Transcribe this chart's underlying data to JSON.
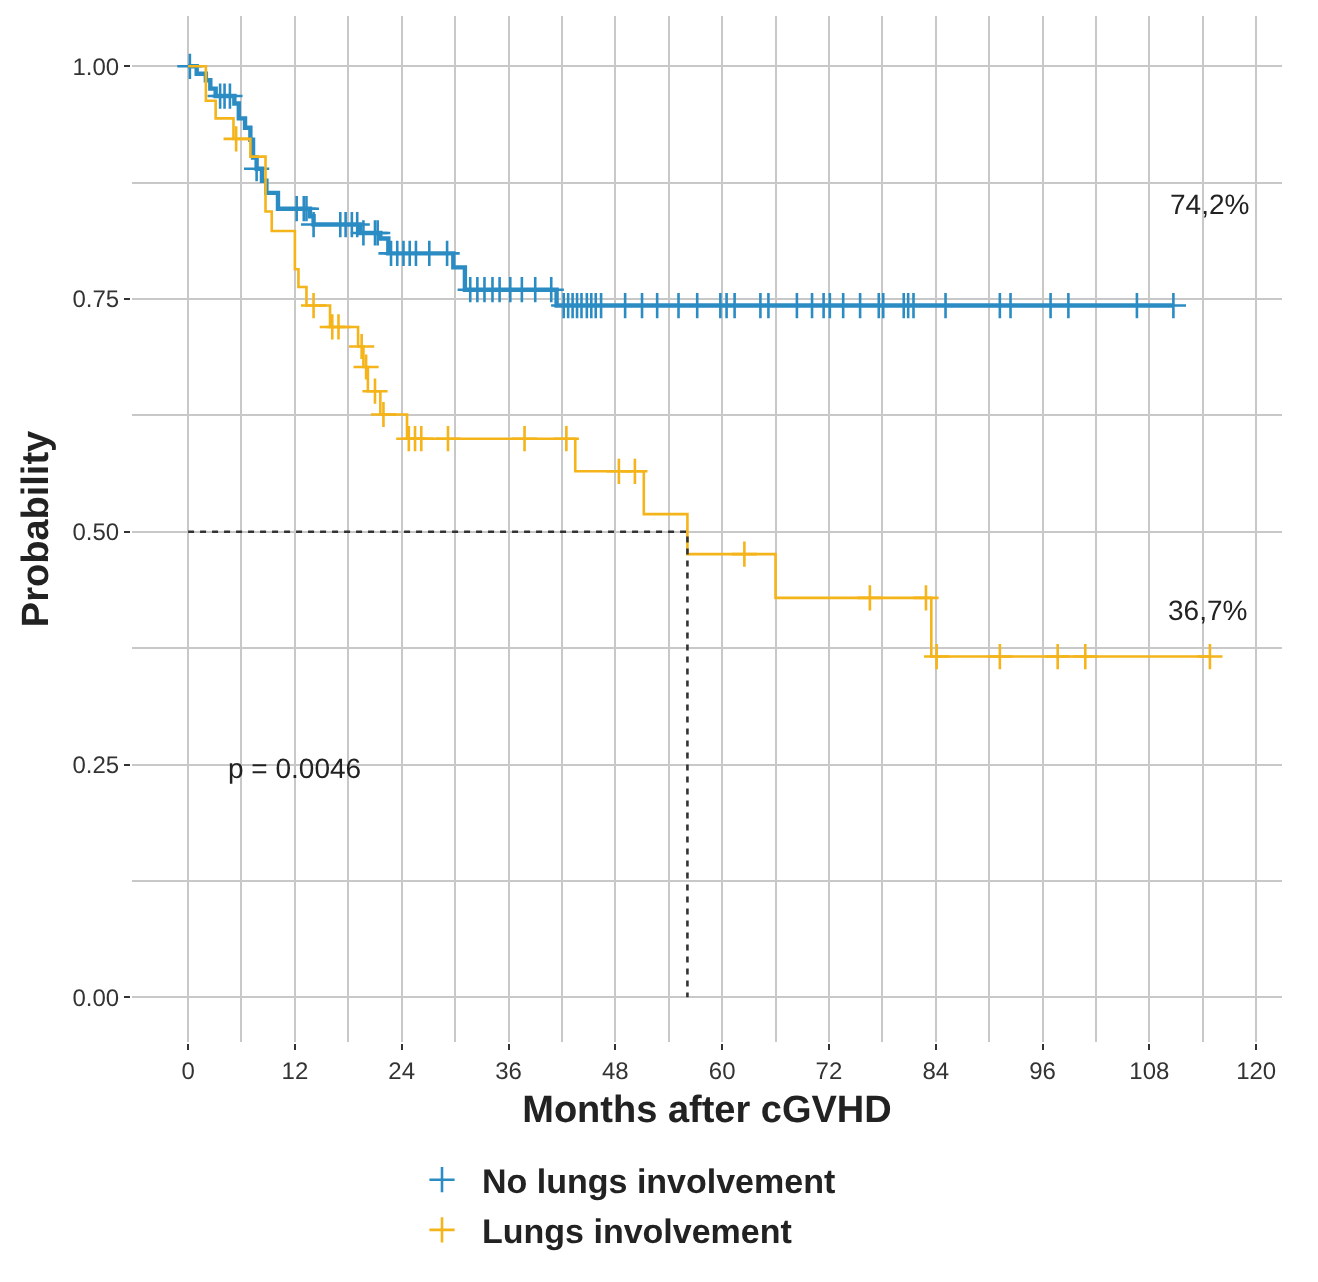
{
  "chart_data": {
    "type": "step",
    "xlabel": "Months after cGVHD",
    "ylabel": "Probability",
    "xlim": [
      -6.3,
      122.9
    ],
    "ylim": [
      -0.048,
      1.054
    ],
    "xticks": [
      0,
      12,
      24,
      36,
      48,
      60,
      72,
      84,
      96,
      108,
      120
    ],
    "yticks": [
      {
        "value": 0,
        "label": "0.00"
      },
      {
        "value": 0.25,
        "label": "0.25"
      },
      {
        "value": 0.5,
        "label": "0.50"
      },
      {
        "value": 0.75,
        "label": "0.75"
      },
      {
        "value": 1,
        "label": "1.00"
      }
    ],
    "grid": true,
    "legend": "bottom",
    "series": [
      {
        "color": "#2b8cc4",
        "x": [
          0,
          0.97,
          2.0,
          2.5,
          3.1,
          5.2,
          5.7,
          6.4,
          7.0,
          7.3,
          7.7,
          8.3,
          8.8,
          10.1,
          13.7,
          14.1,
          19.3,
          21.6,
          22.5,
          29.8,
          31.1,
          41.4,
          110.7
        ],
        "values": [
          1.0,
          0.992,
          0.985,
          0.976,
          0.968,
          0.96,
          0.944,
          0.934,
          0.921,
          0.902,
          0.89,
          0.877,
          0.864,
          0.847,
          0.839,
          0.83,
          0.821,
          0.815,
          0.799,
          0.784,
          0.76,
          0.743,
          0.743
        ]
      },
      {
        "color": "#f4b41a",
        "x": [
          0,
          2.0,
          3.1,
          5.1,
          7.0,
          8.7,
          9.4,
          12.0,
          12.4,
          13.3,
          15.95,
          19.1,
          19.7,
          20.2,
          21.6,
          24.6,
          43.5,
          51.2,
          56.1,
          66.0,
          83.5,
          114.8
        ],
        "values": [
          1.0,
          0.963,
          0.944,
          0.922,
          0.903,
          0.844,
          0.823,
          0.782,
          0.763,
          0.743,
          0.72,
          0.699,
          0.677,
          0.651,
          0.626,
          0.6,
          0.565,
          0.519,
          0.476,
          0.429,
          0.366,
          0.366
        ]
      },
      {
        "type": "scatter",
        "name": "No lungs involvement",
        "color": "#2b8cc4",
        "marker": "cross",
        "x": [
          0.2,
          3.6,
          4.1,
          4.7,
          7.7,
          12.2,
          13.0,
          13.3,
          14.1,
          17.1,
          17.7,
          18.4,
          19.0,
          19.7,
          21.0,
          21.3,
          22.8,
          23.5,
          24.2,
          24.9,
          25.6,
          27.1,
          29.1,
          31.7,
          32.5,
          33.3,
          34.2,
          35.0,
          36.2,
          37.5,
          39.0,
          40.8,
          42.2,
          42.7,
          43.2,
          43.7,
          44.2,
          44.8,
          45.3,
          45.8,
          46.4,
          49.1,
          51.0,
          52.7,
          55.1,
          57.2,
          59.8,
          60.5,
          61.4,
          64.3,
          65.2,
          68.4,
          70.1,
          71.4,
          72.1,
          73.6,
          75.5,
          77.6,
          78.1,
          80.4,
          80.9,
          81.5,
          85.1,
          91.2,
          92.4,
          96.9,
          98.9,
          106.6,
          110.7
        ],
        "values": [
          1.0,
          0.968,
          0.968,
          0.968,
          0.89,
          0.847,
          0.847,
          0.847,
          0.83,
          0.83,
          0.83,
          0.83,
          0.83,
          0.821,
          0.821,
          0.821,
          0.799,
          0.799,
          0.799,
          0.799,
          0.799,
          0.799,
          0.799,
          0.76,
          0.76,
          0.76,
          0.76,
          0.76,
          0.76,
          0.76,
          0.76,
          0.76,
          0.743,
          0.743,
          0.743,
          0.743,
          0.743,
          0.743,
          0.743,
          0.743,
          0.743,
          0.743,
          0.743,
          0.743,
          0.743,
          0.743,
          0.743,
          0.743,
          0.743,
          0.743,
          0.743,
          0.743,
          0.743,
          0.743,
          0.743,
          0.743,
          0.743,
          0.743,
          0.743,
          0.743,
          0.743,
          0.743,
          0.743,
          0.743,
          0.743,
          0.743,
          0.743,
          0.743,
          0.743
        ]
      },
      {
        "type": "scatter",
        "name": "Lungs involvement",
        "color": "#f4b41a",
        "marker": "cross",
        "x": [
          5.4,
          14.1,
          16.2,
          16.9,
          19.5,
          20.0,
          21.0,
          21.95,
          24.8,
          25.5,
          26.2,
          29.2,
          37.8,
          42.5,
          48.4,
          50.2,
          62.5,
          76.6,
          82.9,
          84.1,
          91.2,
          97.7,
          100.8,
          114.8
        ],
        "values": [
          0.922,
          0.743,
          0.72,
          0.72,
          0.699,
          0.677,
          0.651,
          0.626,
          0.6,
          0.6,
          0.6,
          0.6,
          0.6,
          0.6,
          0.565,
          0.565,
          0.476,
          0.429,
          0.429,
          0.366,
          0.366,
          0.366,
          0.366,
          0.366
        ]
      },
      {
        "type": "line",
        "color": "#333333",
        "line_style": "dotted",
        "x": [
          0,
          56.1,
          56.1
        ],
        "values": [
          0.5,
          0.5,
          0
        ]
      }
    ],
    "annotations": [
      "74,2%",
      "36,7%",
      "p = 0.0046"
    ]
  }
}
